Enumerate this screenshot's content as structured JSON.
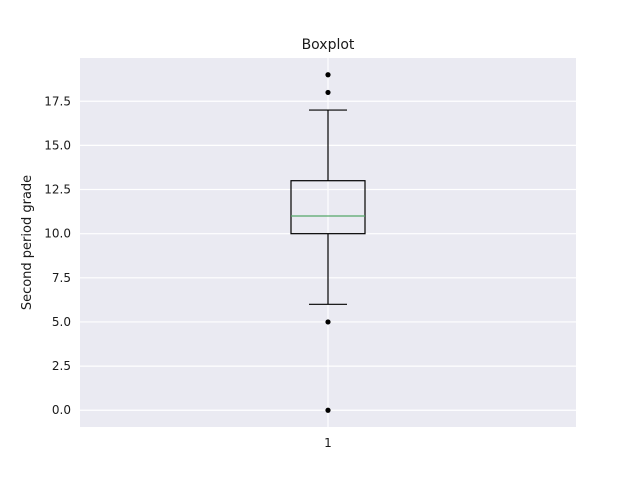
{
  "chart_data": {
    "type": "boxplot",
    "title": "Boxplot",
    "xlabel": "",
    "ylabel": "Second period grade",
    "categories": [
      "1"
    ],
    "boxes": [
      {
        "label": "1",
        "whisker_low": 6.0,
        "q1": 10.0,
        "median": 11.0,
        "q3": 13.0,
        "whisker_high": 17.0,
        "outliers": [
          0.0,
          5.0,
          18.0,
          19.0
        ]
      }
    ],
    "y_ticks": [
      "0.0",
      "2.5",
      "5.0",
      "7.5",
      "10.0",
      "12.5",
      "15.0",
      "17.5"
    ],
    "ylim": [
      -0.95,
      19.95
    ],
    "grid": true,
    "colors": {
      "background": "#eaeaf2",
      "grid": "#ffffff",
      "box": "#000000",
      "median": "#55a868",
      "outlier": "#000000"
    }
  }
}
